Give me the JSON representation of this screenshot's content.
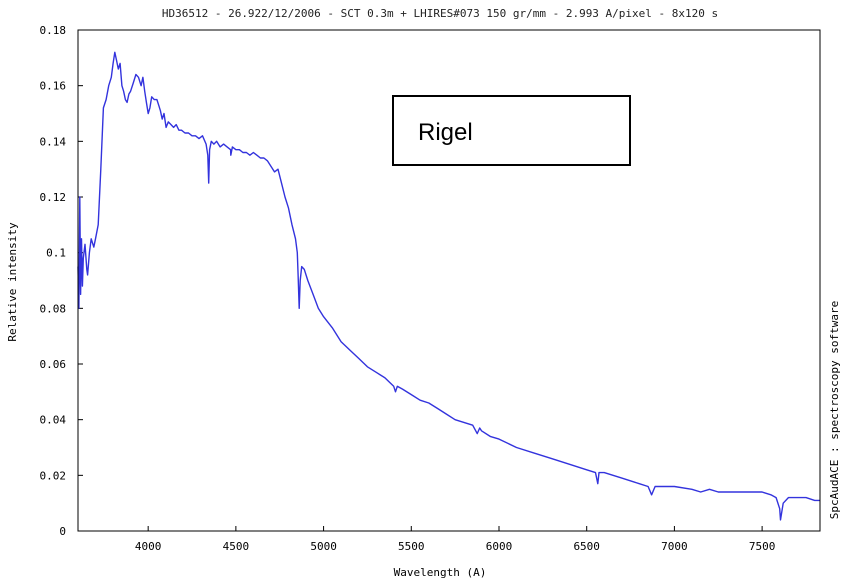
{
  "chart_data": {
    "type": "line",
    "title": "HD36512 - 26.922/12/2006 - SCT 0.3m + LHIRES#073 150 gr/mm - 2.993 A/pixel - 8x120 s",
    "xlabel": "Wavelength (A)",
    "ylabel": "Relative intensity",
    "side_label": "SpcAudACE : spectroscopy software",
    "annotation": "Rigel",
    "xlim": [
      3600,
      7830
    ],
    "ylim": [
      0,
      0.18
    ],
    "xticks": [
      4000,
      4500,
      5000,
      5500,
      6000,
      6500,
      7000,
      7500
    ],
    "yticks": [
      0,
      0.02,
      0.04,
      0.06,
      0.08,
      0.1,
      0.12,
      0.14,
      0.16,
      0.18
    ],
    "ytick_labels": [
      "0",
      "0.02",
      "0.04",
      "0.06",
      "0.08",
      "0.1",
      "0.12",
      "0.14",
      "0.16",
      "0.18"
    ],
    "grid": false,
    "colors": {
      "line": "#3333dd",
      "axes": "#000000"
    },
    "series": [
      {
        "x": [
          3600,
          3605,
          3610,
          3615,
          3620,
          3625,
          3630,
          3640,
          3650,
          3655,
          3665,
          3675,
          3690,
          3700,
          3715,
          3730,
          3745,
          3760,
          3775,
          3790,
          3800,
          3810,
          3820,
          3830,
          3840,
          3850,
          3860,
          3870,
          3880,
          3890,
          3900,
          3915,
          3930,
          3945,
          3960,
          3970,
          3980,
          3990,
          4000,
          4010,
          4020,
          4035,
          4050,
          4060,
          4070,
          4080,
          4090,
          4102,
          4115,
          4130,
          4145,
          4160,
          4175,
          4190,
          4210,
          4230,
          4250,
          4270,
          4290,
          4310,
          4330,
          4340,
          4345,
          4350,
          4360,
          4375,
          4390,
          4410,
          4430,
          4450,
          4470,
          4471,
          4480,
          4500,
          4520,
          4540,
          4560,
          4580,
          4600,
          4620,
          4640,
          4660,
          4680,
          4700,
          4720,
          4740,
          4760,
          4780,
          4800,
          4820,
          4840,
          4850,
          4855,
          4861,
          4867,
          4875,
          4890,
          4910,
          4940,
          4970,
          5000,
          5050,
          5100,
          5150,
          5200,
          5250,
          5300,
          5350,
          5400,
          5410,
          5420,
          5450,
          5500,
          5550,
          5600,
          5650,
          5700,
          5750,
          5800,
          5850,
          5876,
          5890,
          5900,
          5950,
          6000,
          6100,
          6200,
          6300,
          6400,
          6500,
          6550,
          6563,
          6570,
          6600,
          6700,
          6800,
          6850,
          6870,
          6890,
          6950,
          7000,
          7100,
          7150,
          7200,
          7250,
          7300,
          7400,
          7500,
          7550,
          7580,
          7600,
          7605,
          7620,
          7650,
          7700,
          7750,
          7800,
          7830
        ],
        "y": [
          0.095,
          0.08,
          0.12,
          0.085,
          0.105,
          0.088,
          0.098,
          0.103,
          0.094,
          0.092,
          0.1,
          0.105,
          0.102,
          0.105,
          0.11,
          0.13,
          0.152,
          0.155,
          0.16,
          0.163,
          0.168,
          0.172,
          0.169,
          0.166,
          0.168,
          0.16,
          0.158,
          0.155,
          0.154,
          0.157,
          0.158,
          0.161,
          0.164,
          0.163,
          0.16,
          0.163,
          0.158,
          0.154,
          0.15,
          0.152,
          0.156,
          0.155,
          0.155,
          0.153,
          0.151,
          0.148,
          0.15,
          0.145,
          0.147,
          0.146,
          0.145,
          0.146,
          0.144,
          0.144,
          0.143,
          0.143,
          0.142,
          0.142,
          0.141,
          0.142,
          0.139,
          0.135,
          0.125,
          0.137,
          0.14,
          0.139,
          0.14,
          0.138,
          0.139,
          0.138,
          0.137,
          0.135,
          0.138,
          0.137,
          0.137,
          0.136,
          0.136,
          0.135,
          0.136,
          0.135,
          0.134,
          0.134,
          0.133,
          0.131,
          0.129,
          0.13,
          0.125,
          0.12,
          0.116,
          0.11,
          0.105,
          0.1,
          0.092,
          0.08,
          0.09,
          0.095,
          0.094,
          0.09,
          0.085,
          0.08,
          0.077,
          0.073,
          0.068,
          0.065,
          0.062,
          0.059,
          0.057,
          0.055,
          0.052,
          0.05,
          0.052,
          0.051,
          0.049,
          0.047,
          0.046,
          0.044,
          0.042,
          0.04,
          0.039,
          0.038,
          0.035,
          0.037,
          0.036,
          0.034,
          0.033,
          0.03,
          0.028,
          0.026,
          0.024,
          0.022,
          0.021,
          0.017,
          0.021,
          0.021,
          0.019,
          0.017,
          0.016,
          0.013,
          0.016,
          0.016,
          0.016,
          0.015,
          0.014,
          0.015,
          0.014,
          0.014,
          0.014,
          0.014,
          0.013,
          0.012,
          0.008,
          0.004,
          0.01,
          0.012,
          0.012,
          0.012,
          0.011,
          0.011
        ]
      }
    ]
  }
}
